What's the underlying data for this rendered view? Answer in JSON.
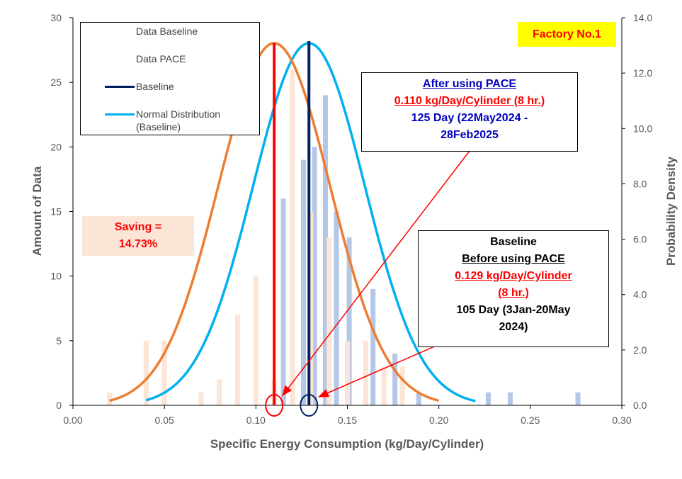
{
  "chart_data": {
    "type": "bar",
    "title": "",
    "xlabel": "Specific Energy Consumption  (kg/Day/Cylinder)",
    "ylabel_left": "Amount  of  Data",
    "ylabel_right": "Probability Density",
    "xlim": [
      0,
      0.3
    ],
    "ylim_left": [
      0,
      30
    ],
    "ylim_right": [
      0,
      14
    ],
    "x_ticks": [
      "0.00",
      "0.05",
      "0.10",
      "0.15",
      "0.20",
      "0.25",
      "0.30"
    ],
    "y_left_ticks": [
      "0",
      "5",
      "10",
      "15",
      "20",
      "25",
      "30"
    ],
    "y_right_ticks": [
      "0.0",
      "2.0",
      "4.0",
      "6.0",
      "8.0",
      "10.0",
      "12.0",
      "14.0"
    ],
    "series": [
      {
        "name": "Data Baseline",
        "color": "#b4c7e7",
        "x": [
          0.115,
          0.126,
          0.132,
          0.138,
          0.144,
          0.151,
          0.164,
          0.176,
          0.189,
          0.227,
          0.239,
          0.276
        ],
        "values": [
          16,
          19,
          20,
          24,
          15,
          13,
          9,
          4,
          1,
          1,
          1,
          1
        ]
      },
      {
        "name": "Data PACE",
        "color": "#fbe5d6",
        "x": [
          0.02,
          0.04,
          0.05,
          0.07,
          0.08,
          0.09,
          0.1,
          0.11,
          0.12,
          0.13,
          0.14,
          0.15,
          0.16,
          0.17,
          0.18
        ],
        "values": [
          1,
          5,
          5,
          1,
          2,
          7,
          10,
          2,
          26,
          15,
          13,
          5,
          5,
          3,
          3
        ]
      },
      {
        "name": "Baseline",
        "color": "#002060",
        "type": "vline",
        "x": 0.129
      },
      {
        "name": "PACE mean",
        "color": "#ff0000",
        "type": "vline",
        "x": 0.11
      },
      {
        "name": "Normal Distribution (Baseline)",
        "color": "#00b0f0",
        "type": "line",
        "axis": "right",
        "mean": 0.129,
        "sd": 0.0305,
        "x_range": [
          0.04,
          0.22
        ]
      },
      {
        "name": "Normal Distribution (PACE)",
        "color": "#ed7d31",
        "type": "line",
        "axis": "right",
        "mean": 0.11,
        "sd": 0.0305,
        "x_range": [
          0.02,
          0.2
        ]
      }
    ]
  },
  "legend": {
    "items": [
      {
        "label": "Data Baseline"
      },
      {
        "label": "Data PACE"
      },
      {
        "label": "Baseline",
        "color": "#002060"
      },
      {
        "label": "Normal Distribution (Baseline)",
        "color": "#00b0f0"
      }
    ]
  },
  "factory_label": "Factory No.1",
  "saving": {
    "line1": "Saving =",
    "line2": "14.73%"
  },
  "after_box": {
    "line1": "After using PACE",
    "line2": "0.110 kg/Day/Cylinder (8 hr.)",
    "line3": "125 Day (22May2024 -",
    "line4": "28Feb2025"
  },
  "baseline_box": {
    "line1": "Baseline",
    "line2": "Before using PACE",
    "line3": "0.129 kg/Day/Cylinder",
    "line4": "(8 hr.)",
    "line5": "105 Day (3Jan-20May",
    "line6": "2024)"
  }
}
